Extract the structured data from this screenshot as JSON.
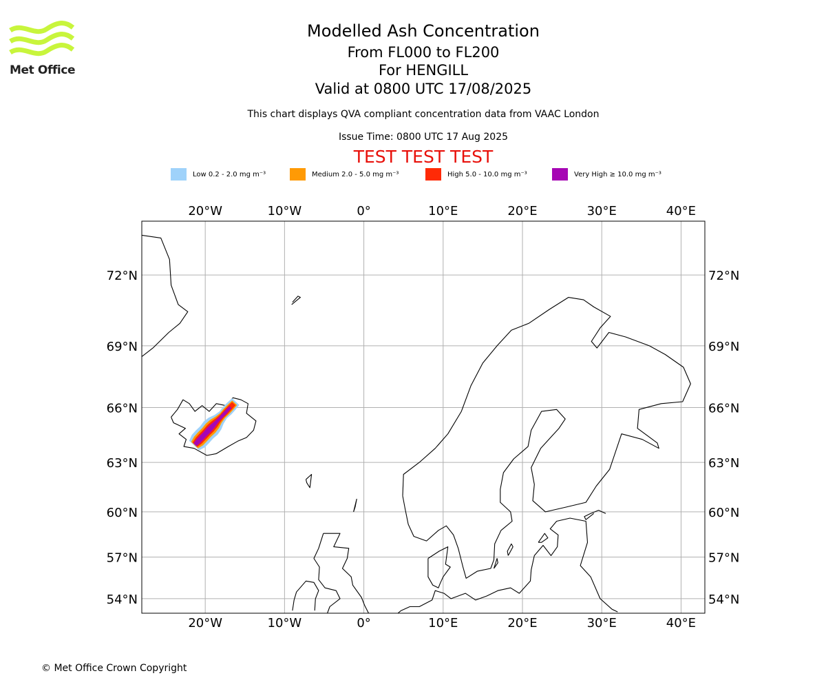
{
  "header": {
    "title": "Modelled Ash Concentration",
    "levels": "From FL000 to FL200",
    "volcano": "For HENGILL",
    "valid": "Valid at 0800 UTC 17/08/2025",
    "note": "This chart displays QVA compliant concentration data from VAAC London",
    "issue": "Issue Time: 0800 UTC 17 Aug 2025",
    "test_banner": "TEST TEST TEST"
  },
  "logo": {
    "name": "Met Office",
    "icon": "met-office-wave-logo",
    "color": "#c8f53c"
  },
  "legend": [
    {
      "label": "Low 0.2 - 2.0 mg m⁻³",
      "color": "#9fd2fa"
    },
    {
      "label": "Medium 2.0 - 5.0 mg m⁻³",
      "color": "#ff9a05"
    },
    {
      "label": "High 5.0 - 10.0 mg m⁻³",
      "color": "#ff2a06"
    },
    {
      "label": "Very High ≥ 10.0 mg m⁻³",
      "color": "#a606b4"
    }
  ],
  "map": {
    "lon_range": [
      -28,
      43
    ],
    "lat_range": [
      52.9,
      74.0
    ],
    "lon_ticks": [
      {
        "lon": -20,
        "label": "20°W"
      },
      {
        "lon": -10,
        "label": "10°W"
      },
      {
        "lon": 0,
        "label": "0°"
      },
      {
        "lon": 10,
        "label": "10°E"
      },
      {
        "lon": 20,
        "label": "20°E"
      },
      {
        "lon": 30,
        "label": "30°E"
      },
      {
        "lon": 40,
        "label": "40°E"
      }
    ],
    "lat_ticks": [
      {
        "lat": 72,
        "label": "72°N"
      },
      {
        "lat": 69,
        "label": "69°N"
      },
      {
        "lat": 66,
        "label": "66°N"
      },
      {
        "lat": 63,
        "label": "63°N"
      },
      {
        "lat": 60,
        "label": "60°N"
      },
      {
        "lat": 57,
        "label": "57°N"
      },
      {
        "lat": 54,
        "label": "54°N"
      }
    ],
    "grid": true,
    "ash_plume": {
      "source": "HENGILL",
      "axis_start": [
        -21.3,
        64.0
      ],
      "axis_end": [
        -16.4,
        66.2
      ],
      "bands": [
        {
          "level": "Low",
          "color": "#9fd2fa",
          "half_width_deg": 0.55,
          "extend_deg": 0.35
        },
        {
          "level": "Medium",
          "color": "#ff9a05",
          "half_width_deg": 0.38,
          "extend_deg": 0.15
        },
        {
          "level": "High",
          "color": "#ff2a06",
          "half_width_deg": 0.26,
          "extend_deg": 0.0
        },
        {
          "level": "Very High",
          "color": "#a606b4",
          "half_width_deg": 0.16,
          "extend_deg": -0.6
        }
      ]
    }
  },
  "footer": {
    "copyright": "© Met Office Crown Copyright"
  }
}
